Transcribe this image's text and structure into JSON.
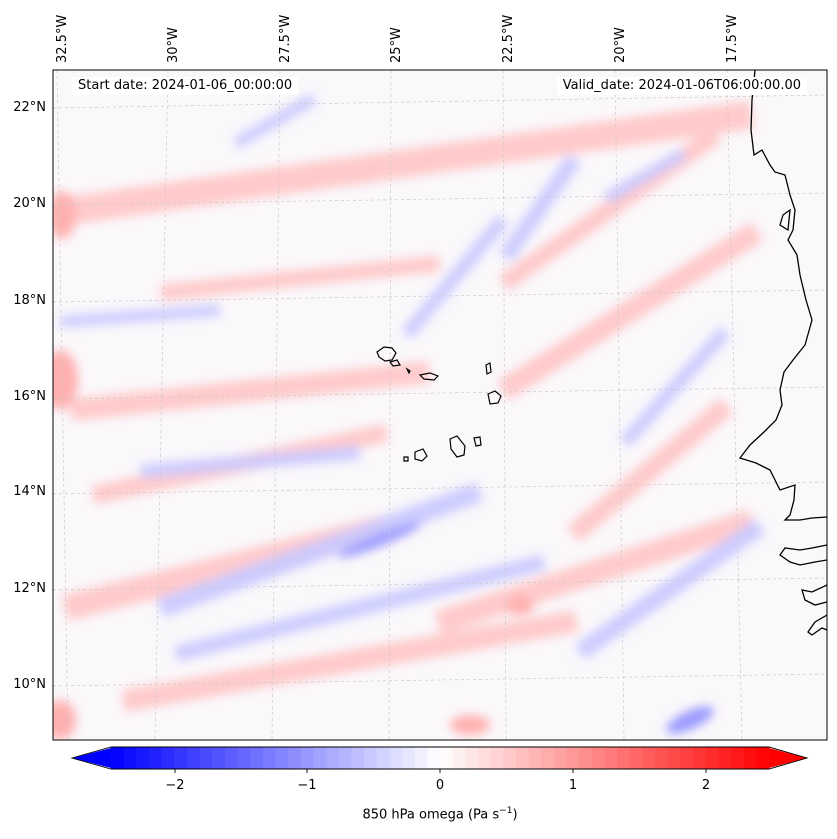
{
  "map": {
    "start_date": "Start date: 2024-01-06_00:00:00",
    "valid_date": "Valid_date: 2024-01-06T06:00:00.00",
    "lon_labels": [
      "32.5°W",
      "30°W",
      "27.5°W",
      "25°W",
      "22.5°W",
      "20°W",
      "17.5°W"
    ],
    "lat_labels": [
      "22°N",
      "20°N",
      "18°N",
      "16°N",
      "14°N",
      "12°N",
      "10°N"
    ],
    "gridlines": "dashed light gray",
    "field": "850 hPa omega"
  },
  "colorbar": {
    "label_prefix": "850 hPa omega (Pa s",
    "label_exp": "−1",
    "label_suffix": ")",
    "ticks": [
      "−2",
      "−1",
      "0",
      "1",
      "2"
    ],
    "range": [
      -2.6,
      2.6
    ],
    "colormap": "bwr",
    "low_color": "#0000ff",
    "mid_color": "#ffffff",
    "high_color": "#ff0000",
    "extend": "both"
  }
}
